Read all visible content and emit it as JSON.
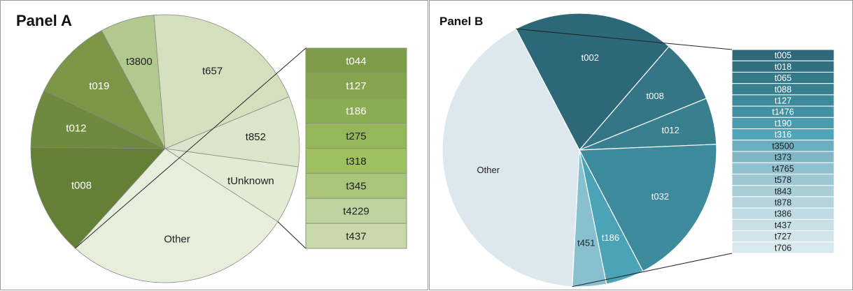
{
  "chart_data": [
    {
      "type": "pie",
      "title": "Panel A",
      "slices": [
        {
          "label": "t008",
          "value": 13.5,
          "color": "#647f36"
        },
        {
          "label": "t012",
          "value": 7.0,
          "color": "#6e8a3e"
        },
        {
          "label": "t019",
          "value": 10.0,
          "color": "#7b9646"
        },
        {
          "label": "t3800",
          "value": 6.5,
          "color": "#b2c98d"
        },
        {
          "label": "t657",
          "value": 20.0,
          "color": "#d4dfbe"
        },
        {
          "label": "t852",
          "value": 8.5,
          "color": "#dbe5c9"
        },
        {
          "label": "tUnknown",
          "value": 7.0,
          "color": "#e3ebd5"
        },
        {
          "label": "Other",
          "value": 27.5,
          "color": "#e8eedc"
        }
      ],
      "breakdown_of": "Other",
      "breakdown": [
        {
          "label": "t044",
          "color": "#7e9b4a"
        },
        {
          "label": "t127",
          "color": "#86a34e"
        },
        {
          "label": "t186",
          "color": "#8bac52"
        },
        {
          "label": "t275",
          "color": "#95b759"
        },
        {
          "label": "t318",
          "color": "#9fc05f"
        },
        {
          "label": "t345",
          "color": "#a9c57c"
        },
        {
          "label": "t4229",
          "color": "#bfd3a0"
        },
        {
          "label": "t437",
          "color": "#c9d9ac"
        }
      ]
    },
    {
      "type": "pie",
      "title": "Panel B",
      "slices": [
        {
          "label": "t002",
          "value": 19.0,
          "color": "#2d6878"
        },
        {
          "label": "t008",
          "value": 7.5,
          "color": "#347686"
        },
        {
          "label": "t012",
          "value": 5.5,
          "color": "#387f90"
        },
        {
          "label": "t032",
          "value": 18.0,
          "color": "#3e8a9d"
        },
        {
          "label": "t186",
          "value": 4.5,
          "color": "#4aa3b7"
        },
        {
          "label": "t451",
          "value": 4.0,
          "color": "#88c0d0"
        },
        {
          "label": "Other",
          "value": 41.5,
          "color": "#dde8ee"
        }
      ],
      "breakdown_of": "Other",
      "breakdown": [
        {
          "label": "t005",
          "color": "#2f6878"
        },
        {
          "label": "t018",
          "color": "#32707f"
        },
        {
          "label": "t065",
          "color": "#357887"
        },
        {
          "label": "t088",
          "color": "#39808f"
        },
        {
          "label": "t127",
          "color": "#3c8999"
        },
        {
          "label": "t1476",
          "color": "#4291a3"
        },
        {
          "label": "t190",
          "color": "#489bb0"
        },
        {
          "label": "t316",
          "color": "#50a4b8"
        },
        {
          "label": "t3500",
          "color": "#6aaebf"
        },
        {
          "label": "t373",
          "color": "#7db7c6"
        },
        {
          "label": "t4765",
          "color": "#8fc0cd"
        },
        {
          "label": "t578",
          "color": "#9dc7d3"
        },
        {
          "label": "t843",
          "color": "#a9ced8"
        },
        {
          "label": "t878",
          "color": "#b4d4dd"
        },
        {
          "label": "t386",
          "color": "#bedae2"
        },
        {
          "label": "t437",
          "color": "#c7dfe6"
        },
        {
          "label": "t727",
          "color": "#d0e4ea"
        },
        {
          "label": "t706",
          "color": "#d8e9ee"
        }
      ]
    }
  ]
}
